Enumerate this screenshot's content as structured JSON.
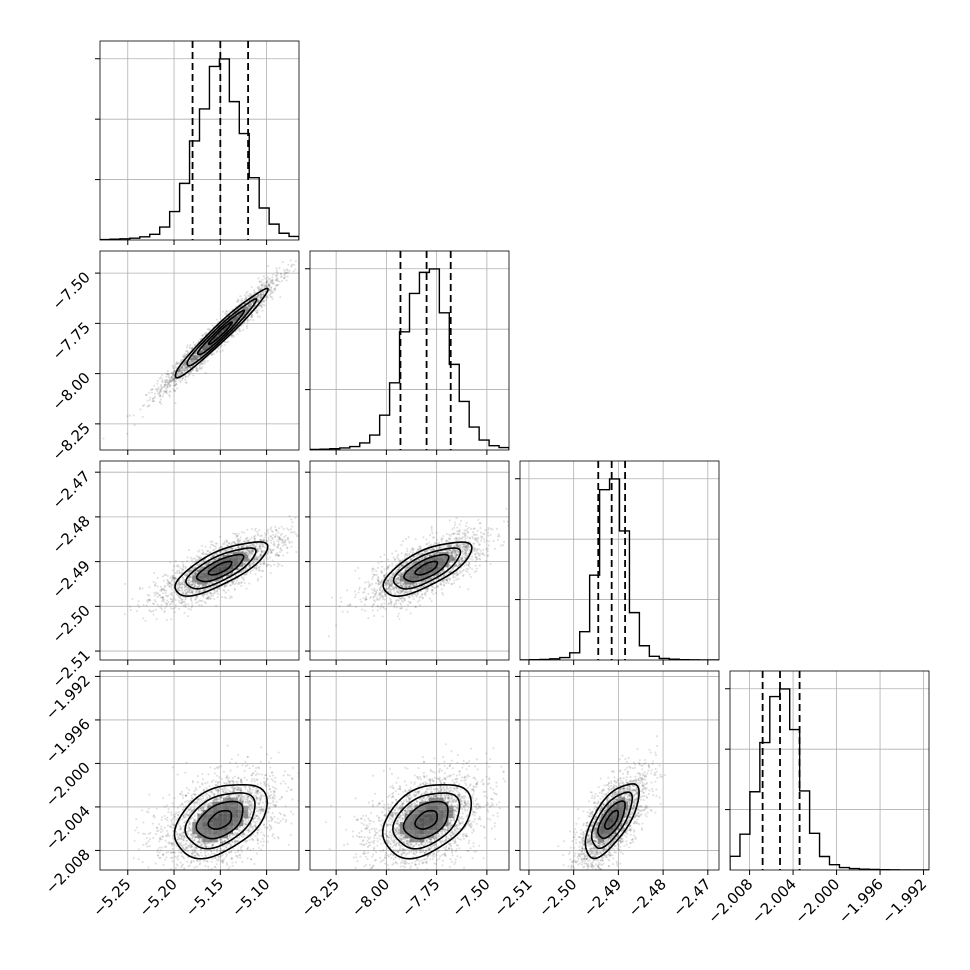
{
  "chart_data": {
    "type": "corner",
    "grid": true,
    "parameters": [
      {
        "index": 0,
        "median": -5.15,
        "q16": -5.18,
        "q84": -5.12,
        "sigma": 0.025,
        "range": [
          -5.28,
          -5.065
        ],
        "ticks": [
          -5.25,
          -5.2,
          -5.15,
          -5.1
        ],
        "tick_labels": [
          "−5.25",
          "−5.20",
          "−5.15",
          "−5.10"
        ]
      },
      {
        "index": 1,
        "median": -7.8,
        "q16": -7.93,
        "q84": -7.68,
        "sigma": 0.11,
        "range": [
          -8.38,
          -7.39
        ],
        "ticks": [
          -8.25,
          -8.0,
          -7.75,
          -7.5
        ],
        "tick_labels": [
          "−8.25",
          "−8.00",
          "−7.75",
          "−7.50"
        ]
      },
      {
        "index": 2,
        "median": -2.4915,
        "q16": -2.4945,
        "q84": -2.4885,
        "sigma": 0.003,
        "range": [
          -2.512,
          -2.4675
        ],
        "ticks": [
          -2.51,
          -2.5,
          -2.49,
          -2.48,
          -2.47
        ],
        "tick_labels": [
          "−2.51",
          "−2.50",
          "−2.49",
          "−2.48",
          "−2.47"
        ]
      },
      {
        "index": 3,
        "median": -2.0052,
        "q16": -2.0068,
        "q84": -2.0034,
        "sigma": 0.0017,
        "range": [
          -2.0098,
          -1.9915
        ],
        "ticks": [
          -2.008,
          -2.004,
          -2.0,
          -1.996,
          -1.992
        ],
        "tick_labels": [
          "−2.008",
          "−2.004",
          "−2.000",
          "−1.996",
          "−1.992"
        ]
      }
    ],
    "correlations": [
      {
        "x": 0,
        "y": 1,
        "rho": 0.97
      },
      {
        "x": 0,
        "y": 2,
        "rho": 0.75
      },
      {
        "x": 1,
        "y": 2,
        "rho": 0.7
      },
      {
        "x": 0,
        "y": 3,
        "rho": 0.42
      },
      {
        "x": 1,
        "y": 3,
        "rho": 0.38
      },
      {
        "x": 2,
        "y": 3,
        "rho": 0.68
      }
    ],
    "contour_levels_sigma": [
      0.5,
      1.0,
      1.5,
      2.0
    ],
    "quantiles": [
      0.16,
      0.5,
      0.84
    ],
    "histogram_bins": 20
  },
  "colors": {
    "line": "#000000",
    "grid": "#b0b0b0",
    "points": "#555555",
    "density_dark": "#111111"
  }
}
